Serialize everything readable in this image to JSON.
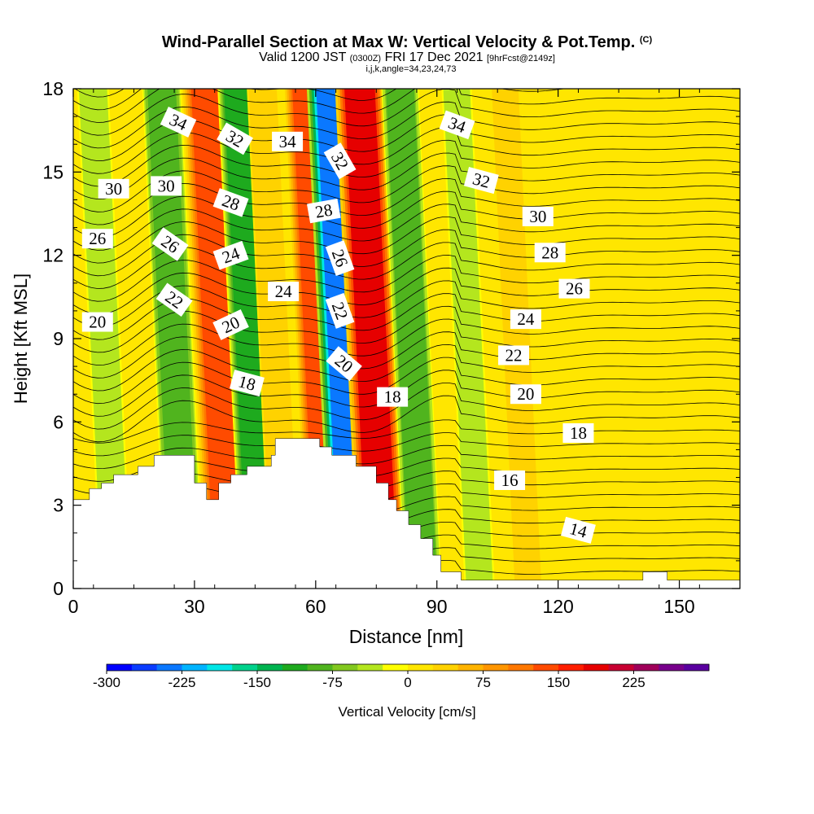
{
  "title": {
    "main": "Wind-Parallel Section at Max W: Vertical Velocity & Pot.Temp.",
    "copyright": "(C)",
    "valid_prefix": "Valid 1200 JST",
    "valid_utc": "(0300Z)",
    "valid_date": "FRI 17 Dec 2021",
    "forecast": "[9hrFcst@2149z]",
    "section_params": "i,j,k,angle=34,23,24,73"
  },
  "chart_data": {
    "type": "heatmap",
    "title": "Wind-Parallel Section at Max W: Vertical Velocity & Pot.Temp.",
    "xlabel": "Distance [nm]",
    "ylabel": "Height [Kft MSL]",
    "xlim": [
      0,
      165
    ],
    "ylim": [
      0,
      18
    ],
    "x_ticks": [
      0,
      30,
      60,
      90,
      120,
      150
    ],
    "y_ticks": [
      0,
      3,
      6,
      9,
      12,
      15,
      18
    ],
    "colorbar": {
      "label": "Vertical Velocity [cm/s]",
      "range": [
        -300,
        300
      ],
      "tick_values": [
        -300,
        -225,
        -150,
        -75,
        0,
        75,
        150,
        225
      ],
      "colors": [
        "#0000ff",
        "#0a3cff",
        "#0a78ff",
        "#00b4ff",
        "#00e6e6",
        "#00d28c",
        "#00b450",
        "#1eaa1e",
        "#50b41e",
        "#82c81e",
        "#b4e61e",
        "#ffff00",
        "#ffe600",
        "#ffd200",
        "#ffb400",
        "#ff9600",
        "#ff7800",
        "#ff4b00",
        "#ff1e00",
        "#e60000",
        "#c80032",
        "#a0005a",
        "#78008c",
        "#5a00a0"
      ]
    },
    "velocity_bands": [
      {
        "x_center": 8,
        "value": -40
      },
      {
        "x_center": 25,
        "value": -90
      },
      {
        "x_center": 36,
        "value": 140
      },
      {
        "x_center": 44,
        "value": -110
      },
      {
        "x_center": 50,
        "value": 40
      },
      {
        "x_center": 61,
        "value": 130
      },
      {
        "x_center": 67,
        "value": -240
      },
      {
        "x_center": 74,
        "value": 180
      },
      {
        "x_center": 84,
        "value": -80
      },
      {
        "x_center": 98,
        "value": -30
      },
      {
        "x_center": 110,
        "value": 25
      }
    ],
    "contour_labels": [
      {
        "text": "34",
        "x": 26,
        "y": 16.8,
        "angle": 25
      },
      {
        "text": "32",
        "x": 40,
        "y": 16.2,
        "angle": 30
      },
      {
        "text": "34",
        "x": 53,
        "y": 16.1,
        "angle": 0
      },
      {
        "text": "32",
        "x": 66,
        "y": 15.4,
        "angle": 60
      },
      {
        "text": "34",
        "x": 95,
        "y": 16.7,
        "angle": 20
      },
      {
        "text": "32",
        "x": 101,
        "y": 14.7,
        "angle": 15
      },
      {
        "text": "30",
        "x": 10,
        "y": 14.4,
        "angle": 0
      },
      {
        "text": "30",
        "x": 23,
        "y": 14.5,
        "angle": 0
      },
      {
        "text": "28",
        "x": 39,
        "y": 13.9,
        "angle": 20
      },
      {
        "text": "28",
        "x": 62,
        "y": 13.6,
        "angle": -10
      },
      {
        "text": "30",
        "x": 115,
        "y": 13.4,
        "angle": 0
      },
      {
        "text": "26",
        "x": 6,
        "y": 12.6,
        "angle": 0
      },
      {
        "text": "26",
        "x": 24,
        "y": 12.4,
        "angle": 35
      },
      {
        "text": "24",
        "x": 39,
        "y": 12.0,
        "angle": -20
      },
      {
        "text": "26",
        "x": 66,
        "y": 11.9,
        "angle": 70
      },
      {
        "text": "28",
        "x": 118,
        "y": 12.1,
        "angle": 0
      },
      {
        "text": "24",
        "x": 52,
        "y": 10.7,
        "angle": 0
      },
      {
        "text": "22",
        "x": 25,
        "y": 10.4,
        "angle": 35
      },
      {
        "text": "22",
        "x": 66,
        "y": 10.0,
        "angle": 70
      },
      {
        "text": "26",
        "x": 124,
        "y": 10.8,
        "angle": 0
      },
      {
        "text": "20",
        "x": 6,
        "y": 9.6,
        "angle": 0
      },
      {
        "text": "20",
        "x": 39,
        "y": 9.5,
        "angle": -25
      },
      {
        "text": "24",
        "x": 112,
        "y": 9.7,
        "angle": 0
      },
      {
        "text": "20",
        "x": 67,
        "y": 8.1,
        "angle": 40
      },
      {
        "text": "22",
        "x": 109,
        "y": 8.4,
        "angle": 0
      },
      {
        "text": "18",
        "x": 43,
        "y": 7.4,
        "angle": 15
      },
      {
        "text": "18",
        "x": 79,
        "y": 6.9,
        "angle": 0
      },
      {
        "text": "20",
        "x": 112,
        "y": 7.0,
        "angle": 0
      },
      {
        "text": "18",
        "x": 125,
        "y": 5.6,
        "angle": 0
      },
      {
        "text": "16",
        "x": 108,
        "y": 3.9,
        "angle": 0
      },
      {
        "text": "14",
        "x": 125,
        "y": 2.1,
        "angle": 15
      }
    ],
    "terrain_kft": [
      [
        0,
        3.2
      ],
      [
        4,
        3.6
      ],
      [
        7,
        3.8
      ],
      [
        10,
        4.1
      ],
      [
        16,
        4.4
      ],
      [
        20,
        4.8
      ],
      [
        29,
        4.8
      ],
      [
        30,
        3.8
      ],
      [
        33,
        3.2
      ],
      [
        36,
        3.8
      ],
      [
        39,
        4.1
      ],
      [
        43,
        4.4
      ],
      [
        49,
        4.8
      ],
      [
        50,
        5.4
      ],
      [
        59,
        5.4
      ],
      [
        61,
        5.1
      ],
      [
        64,
        4.8
      ],
      [
        70,
        4.4
      ],
      [
        75,
        3.8
      ],
      [
        78,
        3.2
      ],
      [
        80,
        2.8
      ],
      [
        83,
        2.3
      ],
      [
        86,
        1.8
      ],
      [
        89,
        1.2
      ],
      [
        91,
        0.6
      ],
      [
        96,
        0.3
      ],
      [
        140,
        0.3
      ],
      [
        141,
        0.6
      ],
      [
        146,
        0.6
      ],
      [
        147,
        0.3
      ],
      [
        165,
        0.3
      ]
    ]
  }
}
